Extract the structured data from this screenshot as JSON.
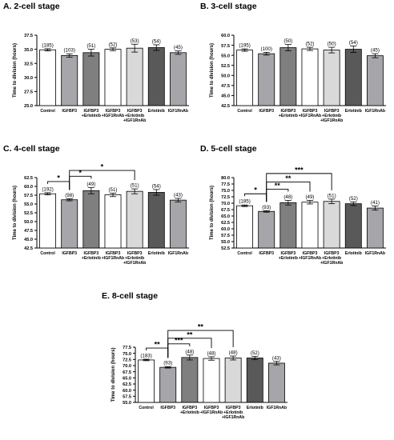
{
  "colors": {
    "Control": "#ffffff",
    "IGFBP3": "#a6a6aa",
    "IGFBP3+Erlotinib": "#7f7f7f",
    "IGFBP3+IGF1RnAb": "#ffffff",
    "IGFBP3+Erlotinib+IGF1RnAb": "#d9d9d9",
    "Erlotinib": "#595959",
    "IGF1RnAb": "#a6a6aa"
  },
  "chart_data": [
    {
      "type": "bar",
      "title": "A. 2-cell stage",
      "ylabel": "Time to division (hours)",
      "ylim": [
        25.0,
        37.5
      ],
      "yticks": [
        "25.0",
        "27.5",
        "30.0",
        "32.5",
        "35.0",
        "37.5"
      ],
      "categories": [
        [
          "Control"
        ],
        [
          "IGFBP3"
        ],
        [
          "IGFBP3",
          "+Erlotinib"
        ],
        [
          "IGFBP3",
          "+IGF1RnAb"
        ],
        [
          "IGFBP3",
          "+Erlotinib",
          "+IGF1RnAb"
        ],
        [
          "Erlotinib"
        ],
        [
          "IGF1RnAb"
        ]
      ],
      "values": [
        34.9,
        33.9,
        34.4,
        35.0,
        35.2,
        35.3,
        34.4
      ],
      "errors": [
        0.2,
        0.3,
        0.6,
        0.25,
        0.7,
        0.5,
        0.3
      ],
      "labels": [
        "(185)",
        "(103)",
        "(51)",
        "(52)",
        "(53)",
        "(54)",
        "(45)"
      ],
      "brackets": []
    },
    {
      "type": "bar",
      "title": "B. 3-cell stage",
      "ylabel": "Time to division (hours)",
      "ylim": [
        42.5,
        60.0
      ],
      "yticks": [
        "42.5",
        "45.0",
        "47.5",
        "50.0",
        "52.5",
        "55.0",
        "57.5",
        "60.0"
      ],
      "categories": [
        [
          "Control"
        ],
        [
          "IGFBP3"
        ],
        [
          "IGFBP3",
          "+Erlotinib"
        ],
        [
          "IGFBP3",
          "+IGF1RnAb"
        ],
        [
          "IGFBP3",
          "+Erlotinib",
          "+IGF1RnAb"
        ],
        [
          "Erlotinib"
        ],
        [
          "IGF1RnAb"
        ]
      ],
      "values": [
        56.3,
        55.4,
        56.9,
        56.6,
        56.3,
        56.5,
        54.9
      ],
      "errors": [
        0.3,
        0.35,
        0.8,
        0.4,
        0.7,
        0.8,
        0.5
      ],
      "labels": [
        "(195)",
        "(100)",
        "(50)",
        "(52)",
        "(50)",
        "(54)",
        "(45)"
      ],
      "brackets": []
    },
    {
      "type": "bar",
      "title": "C. 4-cell stage",
      "ylabel": "Time to division (hours)",
      "ylim": [
        42.5,
        62.5
      ],
      "yticks": [
        "42.5",
        "45.0",
        "47.5",
        "50.0",
        "52.5",
        "55.0",
        "57.5",
        "60.0",
        "62.5"
      ],
      "categories": [
        [
          "Control"
        ],
        [
          "IGFBP3"
        ],
        [
          "IGFBP3",
          "+Erlotinib"
        ],
        [
          "IGFBP3",
          "+IGF1RnAb"
        ],
        [
          "IGFBP3",
          "+Erlotinib",
          "+IGF1RnAb"
        ],
        [
          "Erlotinib"
        ],
        [
          "IGF1RnAb"
        ]
      ],
      "values": [
        57.9,
        56.2,
        58.8,
        57.6,
        58.6,
        58.3,
        56.1
      ],
      "errors": [
        0.3,
        0.3,
        0.9,
        0.5,
        0.7,
        0.8,
        0.5
      ],
      "labels": [
        "(192)",
        "(98)",
        "(49)",
        "(51)",
        "(51)",
        "(54)",
        "(43)"
      ],
      "brackets": [
        {
          "from": 0,
          "to": 1,
          "level": 0,
          "label": "*"
        },
        {
          "from": 1,
          "to": 2,
          "level": 0,
          "label": "*"
        },
        {
          "from": 1,
          "to": 4,
          "level": 1,
          "label": "*"
        }
      ]
    },
    {
      "type": "bar",
      "title": "D. 5-cell stage",
      "ylabel": "Time to division (hours)",
      "ylim": [
        52.5,
        80.0
      ],
      "yticks": [
        "52.5",
        "55.0",
        "57.5",
        "60.0",
        "62.5",
        "65.0",
        "67.5",
        "70.0",
        "72.5",
        "75.0",
        "77.5",
        "80.0"
      ],
      "categories": [
        [
          "Control"
        ],
        [
          "IGFBP3"
        ],
        [
          "IGFBP3",
          "+Erlotinib"
        ],
        [
          "IGFBP3",
          "+IGF1RnAb"
        ],
        [
          "IGFBP3",
          "+Erlotinib",
          "+IGF1RnAb"
        ],
        [
          "Erlotinib"
        ],
        [
          "IGF1RnAb"
        ]
      ],
      "values": [
        69.0,
        66.8,
        70.2,
        70.4,
        70.7,
        69.8,
        68.1
      ],
      "errors": [
        0.3,
        0.3,
        0.9,
        0.7,
        0.9,
        0.7,
        0.8
      ],
      "labels": [
        "(185)",
        "(93)",
        "(48)",
        "(49)",
        "(51)",
        "(52)",
        "(41)"
      ],
      "brackets": [
        {
          "from": 0,
          "to": 1,
          "level": 0,
          "label": "*"
        },
        {
          "from": 1,
          "to": 2,
          "level": 0,
          "label": "**"
        },
        {
          "from": 1,
          "to": 3,
          "level": 1,
          "label": "**"
        },
        {
          "from": 1,
          "to": 4,
          "level": 2,
          "label": "***"
        }
      ]
    },
    {
      "type": "bar",
      "title": "E. 8-cell stage",
      "ylabel": "Time to division (hours)",
      "ylim": [
        55.0,
        77.5
      ],
      "yticks": [
        "55.0",
        "57.5",
        "60.0",
        "62.5",
        "65.0",
        "67.5",
        "70.0",
        "72.5",
        "75.0",
        "77.5"
      ],
      "categories": [
        [
          "Control"
        ],
        [
          "IGFBP3"
        ],
        [
          "IGFBP3",
          "+Erlotinib"
        ],
        [
          "IGFBP3",
          "+IGF1RnAb"
        ],
        [
          "IGFBP3",
          "+Erlotinib",
          "+IGF1RnAb"
        ],
        [
          "Erlotinib"
        ],
        [
          "IGF1RnAb"
        ]
      ],
      "values": [
        72.3,
        69.3,
        73.3,
        72.9,
        73.1,
        73.1,
        71.0
      ],
      "errors": [
        0.3,
        0.3,
        1.0,
        0.7,
        0.8,
        0.7,
        0.7
      ],
      "labels": [
        "(183)",
        "(93)",
        "(48)",
        "(48)",
        "(48)",
        "(52)",
        "(43)"
      ],
      "brackets": [
        {
          "from": 0,
          "to": 1,
          "level": 0,
          "label": "**"
        },
        {
          "from": 1,
          "to": 2,
          "level": 0,
          "label": "***"
        },
        {
          "from": 1,
          "to": 3,
          "level": 1,
          "label": "**"
        },
        {
          "from": 1,
          "to": 4,
          "level": 2,
          "label": "**"
        }
      ]
    }
  ]
}
